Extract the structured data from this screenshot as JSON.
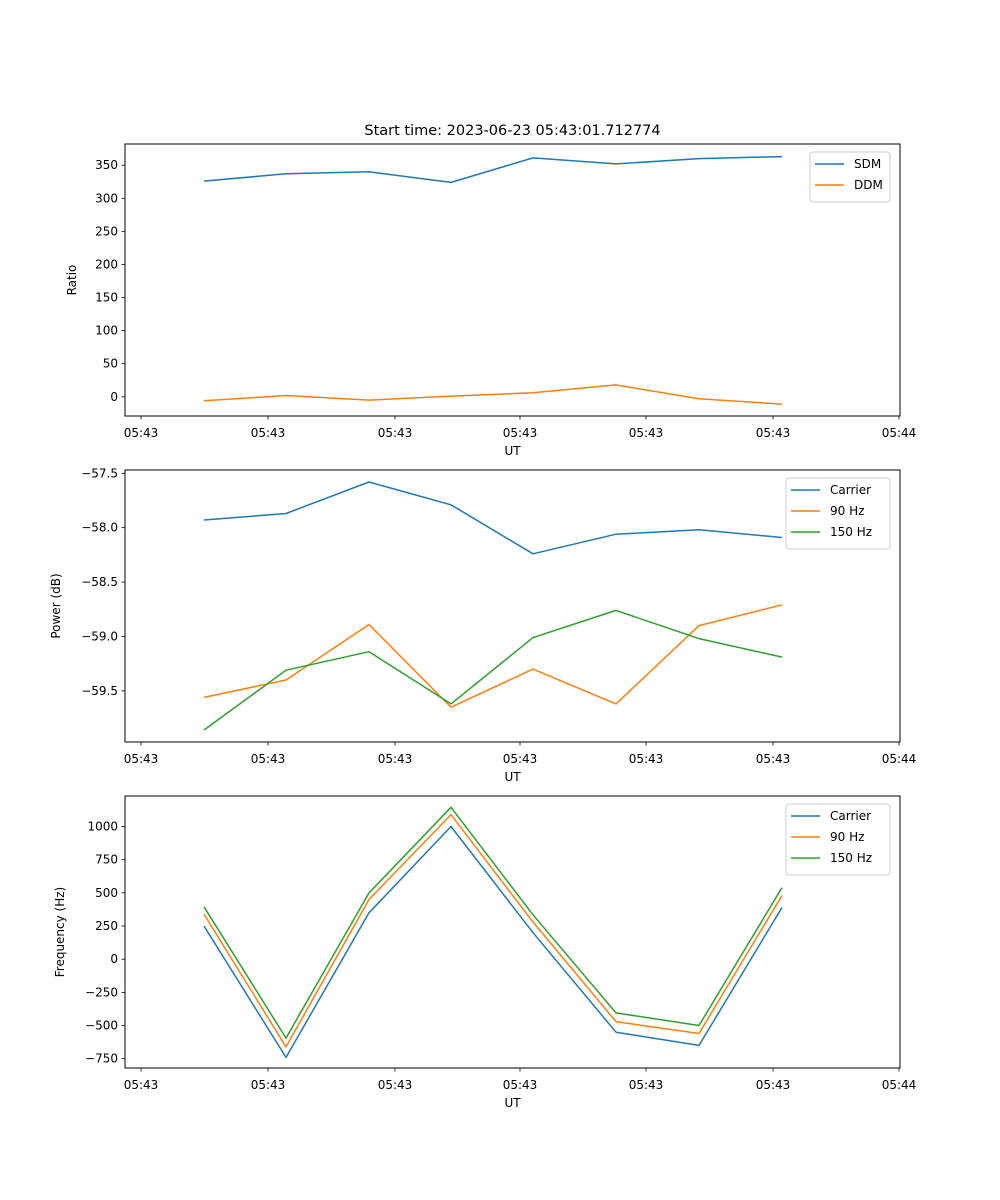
{
  "figure": {
    "title": "Start time: 2023-06-23 05:43:01.712774"
  },
  "colors": {
    "blue": "#1f77b4",
    "orange": "#ff7f0e",
    "green": "#2ca02c"
  },
  "chart_data": [
    {
      "type": "line",
      "title": "Start time: 2023-06-23 05:43:01.712774",
      "xlabel": "UT",
      "ylabel": "Ratio",
      "x_tick_labels": [
        "05:43",
        "05:43",
        "05:43",
        "05:43",
        "05:43",
        "05:43",
        "05:43"
      ],
      "x_last_tick_label": "05:44",
      "ylim": [
        -29,
        382
      ],
      "yticks": [
        0,
        50,
        100,
        150,
        200,
        250,
        300,
        350
      ],
      "grid": false,
      "legend": "top-right",
      "series": [
        {
          "name": "SDM",
          "color": "#1f77b4",
          "values": [
            326,
            337,
            340,
            324,
            361,
            352,
            360,
            363
          ]
        },
        {
          "name": "DDM",
          "color": "#ff7f0e",
          "values": [
            -6,
            2,
            -5,
            1,
            6,
            18,
            -3,
            -11
          ]
        }
      ]
    },
    {
      "type": "line",
      "xlabel": "UT",
      "ylabel": "Power (dB)",
      "x_tick_labels": [
        "05:43",
        "05:43",
        "05:43",
        "05:43",
        "05:43",
        "05:43",
        "05:43"
      ],
      "x_last_tick_label": "05:44",
      "ylim": [
        -59.97,
        -57.47
      ],
      "yticks": [
        -59.5,
        -59.0,
        -58.5,
        -58.0,
        -57.5
      ],
      "ytick_labels": [
        "−59.5",
        "−59.0",
        "−58.5",
        "−58.0",
        "−57.5"
      ],
      "grid": false,
      "legend": "top-right",
      "series": [
        {
          "name": "Carrier",
          "color": "#1f77b4",
          "values": [
            -57.93,
            -57.87,
            -57.58,
            -57.79,
            -58.24,
            -58.06,
            -58.02,
            -58.09
          ]
        },
        {
          "name": "90 Hz",
          "color": "#ff7f0e",
          "values": [
            -59.56,
            -59.4,
            -58.89,
            -59.65,
            -59.3,
            -59.62,
            -58.9,
            -58.71
          ]
        },
        {
          "name": "150 Hz",
          "color": "#2ca02c",
          "values": [
            -59.86,
            -59.31,
            -59.14,
            -59.62,
            -59.01,
            -58.76,
            -59.02,
            -59.19
          ]
        }
      ]
    },
    {
      "type": "line",
      "xlabel": "UT",
      "ylabel": "Frequency (Hz)",
      "x_tick_labels": [
        "05:43",
        "05:43",
        "05:43",
        "05:43",
        "05:43",
        "05:43",
        "05:43"
      ],
      "x_last_tick_label": "05:44",
      "ylim": [
        -820,
        1230
      ],
      "yticks": [
        -750,
        -500,
        -250,
        0,
        250,
        500,
        750,
        1000
      ],
      "ytick_labels": [
        "−750",
        "−500",
        "−250",
        "0",
        "250",
        "500",
        "750",
        "1000"
      ],
      "grid": false,
      "legend": "top-right",
      "series": [
        {
          "name": "Carrier",
          "color": "#1f77b4",
          "values": [
            250,
            -740,
            350,
            1000,
            200,
            -550,
            -650,
            390
          ]
        },
        {
          "name": "90 Hz",
          "color": "#ff7f0e",
          "values": [
            340,
            -660,
            450,
            1090,
            280,
            -470,
            -560,
            480
          ]
        },
        {
          "name": "150 Hz",
          "color": "#2ca02c",
          "values": [
            395,
            -595,
            500,
            1145,
            335,
            -405,
            -500,
            540
          ]
        }
      ]
    }
  ]
}
